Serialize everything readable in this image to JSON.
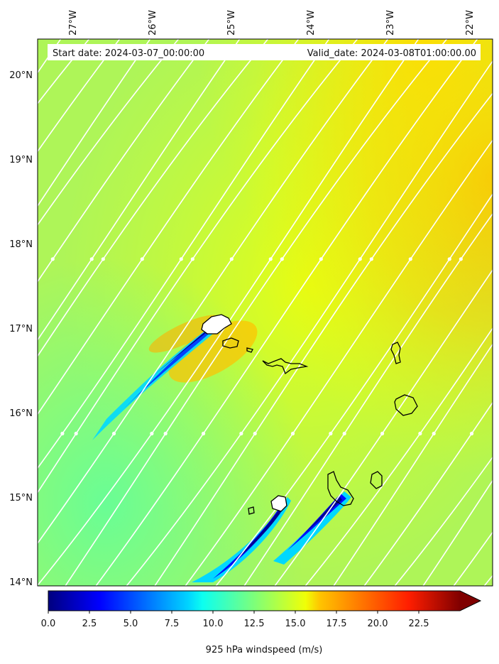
{
  "header": {
    "start_date": "Start date: 2024-03-07_00:00:00",
    "valid_date": "Valid_date: 2024-03-08T01:00:00.00"
  },
  "axes": {
    "lon_labels": [
      "27°W",
      "26°W",
      "25°W",
      "24°W",
      "23°W",
      "22°W"
    ],
    "lat_labels": [
      "20°N",
      "19°N",
      "18°N",
      "17°N",
      "16°N",
      "15°N",
      "14°N"
    ]
  },
  "map_extent": {
    "lon_min": -27.4,
    "lon_max": -21.8,
    "lat_min": 13.95,
    "lat_max": 20.4
  },
  "colorbar": {
    "label": "925 hPa windspeed (m/s)",
    "tick_labels": [
      "0.0",
      "2.5",
      "5.0",
      "7.5",
      "10.0",
      "12.5",
      "15.0",
      "17.5",
      "20.0",
      "22.5"
    ],
    "vmin": 0,
    "vmax": 25,
    "colormap": "jet",
    "extend": "max"
  },
  "colors": {
    "background_field": "#aef558",
    "streamline": "#ffffff",
    "coastline": "#000000"
  }
}
